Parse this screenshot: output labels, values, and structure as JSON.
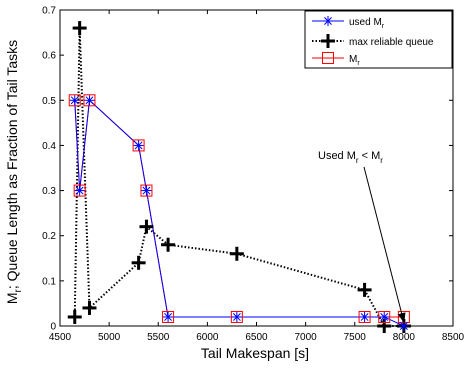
{
  "chart_data": {
    "type": "line",
    "title": "",
    "xlabel": "Tail Makespan [s]",
    "ylabel": "M",
    "ylabel_sub": "r",
    "ylabel_rest": "; Queue Length as Fraction of Tail Tasks",
    "xlim": [
      4500,
      8500
    ],
    "ylim": [
      0,
      0.7
    ],
    "xticks": [
      4500,
      5000,
      5500,
      6000,
      6500,
      7000,
      7500,
      8000,
      8500
    ],
    "yticks": [
      0,
      0.1,
      0.2,
      0.3,
      0.4,
      0.5,
      0.6,
      0.7
    ],
    "xtick_labels": [
      "4500",
      "5000",
      "5500",
      "6000",
      "6500",
      "7000",
      "7500",
      "8000",
      "8500"
    ],
    "ytick_labels": [
      "0",
      "0.1",
      "0.2",
      "0.3",
      "0.4",
      "0.5",
      "0.6",
      "0.7"
    ],
    "grid": false,
    "legend_position": "top-right",
    "series": [
      {
        "key": "used_mr",
        "name": "used M",
        "name_sub": "r",
        "color": "#0000ff",
        "marker": "asterisk",
        "line": "solid",
        "x": [
          4650,
          4700,
          4800,
          5300,
          5380,
          5600,
          6300,
          7600,
          7800,
          8000
        ],
        "y": [
          0.5,
          0.3,
          0.5,
          0.4,
          0.3,
          0.02,
          0.02,
          0.02,
          0.02,
          0.0
        ]
      },
      {
        "key": "max_reliable",
        "name": "max reliable queue",
        "name_sub": "",
        "color": "#000000",
        "marker": "plus",
        "line": "dotted",
        "x": [
          4650,
          4700,
          4800,
          5300,
          5380,
          5600,
          6300,
          7600,
          7800,
          8000
        ],
        "y": [
          0.02,
          0.66,
          0.04,
          0.14,
          0.22,
          0.18,
          0.16,
          0.08,
          0.0,
          0.0
        ]
      },
      {
        "key": "mr",
        "name": "M",
        "name_sub": "r",
        "color": "#ff0000",
        "marker": "square",
        "line": "solid",
        "x": [
          4650,
          4700,
          4800,
          5300,
          5380,
          5600,
          6300,
          7600,
          7800,
          8000
        ],
        "y": [
          0.5,
          0.3,
          0.5,
          0.4,
          0.3,
          0.02,
          0.02,
          0.02,
          0.02,
          0.02
        ]
      }
    ],
    "annotation": {
      "text_a": "Used M",
      "sub_a": "r",
      "text_b": " < M",
      "sub_b": "r",
      "x": 8000,
      "y": 0.0
    }
  }
}
